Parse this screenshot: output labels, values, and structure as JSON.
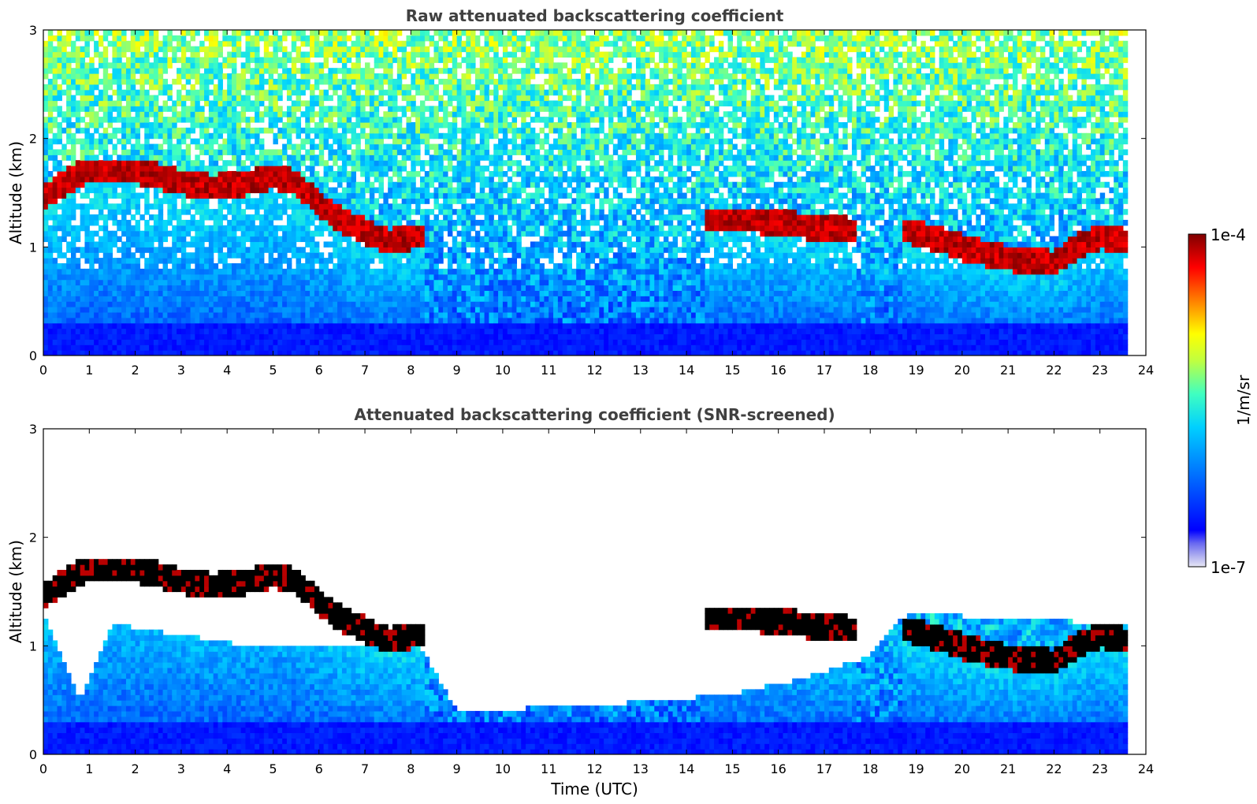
{
  "chart_data": [
    {
      "type": "heatmap",
      "title": "Raw attenuated backscattering coefficient",
      "xlabel": "",
      "ylabel": "Altitude (km)",
      "xlim": [
        0,
        24
      ],
      "ylim": [
        0,
        3
      ],
      "x_ticks": [
        "0",
        "1",
        "2",
        "3",
        "4",
        "5",
        "6",
        "7",
        "8",
        "9",
        "10",
        "11",
        "12",
        "13",
        "14",
        "15",
        "16",
        "17",
        "18",
        "19",
        "20",
        "21",
        "22",
        "23",
        "24"
      ],
      "y_ticks": [
        "0",
        "1",
        "2",
        "3"
      ],
      "data_end_time": 23.6,
      "cloud_layer": {
        "times": [
          0.0,
          0.3,
          0.9,
          2.0,
          3.0,
          3.7,
          4.5,
          5.0,
          5.5,
          6.0,
          6.5,
          7.0,
          7.5,
          8.1,
          14.5,
          15.5,
          16.5,
          17.6,
          18.9,
          20.0,
          21.0,
          22.0,
          22.5,
          23.0,
          23.6
        ],
        "altitude_km": [
          1.45,
          1.55,
          1.7,
          1.7,
          1.6,
          1.55,
          1.6,
          1.65,
          1.6,
          1.4,
          1.25,
          1.15,
          1.05,
          1.1,
          1.25,
          1.25,
          1.2,
          1.15,
          1.15,
          1.0,
          0.9,
          0.85,
          1.0,
          1.1,
          1.05
        ]
      },
      "colorbar": {
        "min_label": "1e-7",
        "max_label": "1e-4",
        "label": "1/m/sr",
        "scale": "log",
        "colormap": "jet"
      }
    },
    {
      "type": "heatmap",
      "title": "Attenuated backscattering coefficient (SNR-screened)",
      "xlabel": "Time (UTC)",
      "ylabel": "Altitude (km)",
      "xlim": [
        0,
        24
      ],
      "ylim": [
        0,
        3
      ],
      "x_ticks": [
        "0",
        "1",
        "2",
        "3",
        "4",
        "5",
        "6",
        "7",
        "8",
        "9",
        "10",
        "11",
        "12",
        "13",
        "14",
        "15",
        "16",
        "17",
        "18",
        "19",
        "20",
        "21",
        "22",
        "23",
        "24"
      ],
      "y_ticks": [
        "0",
        "1",
        "2",
        "3"
      ],
      "data_end_time": 23.6,
      "screened_top_km": {
        "times": [
          0.0,
          0.8,
          1.5,
          3.0,
          4.5,
          6.0,
          8.2,
          9.0,
          12.0,
          15.0,
          16.5,
          18.0,
          18.8,
          23.6
        ],
        "altitude_km": [
          1.3,
          0.5,
          1.2,
          1.1,
          1.0,
          1.0,
          1.0,
          0.4,
          0.45,
          0.55,
          0.7,
          0.9,
          1.3,
          1.2
        ]
      }
    }
  ],
  "colors": {
    "jet_low": "#00008f",
    "jet_blue": "#0040ff",
    "jet_cyan": "#00c8ff",
    "jet_green": "#80ff80",
    "jet_yellow": "#ffff00",
    "jet_orange": "#ff8000",
    "jet_red": "#d00000",
    "jet_high": "#800000"
  }
}
